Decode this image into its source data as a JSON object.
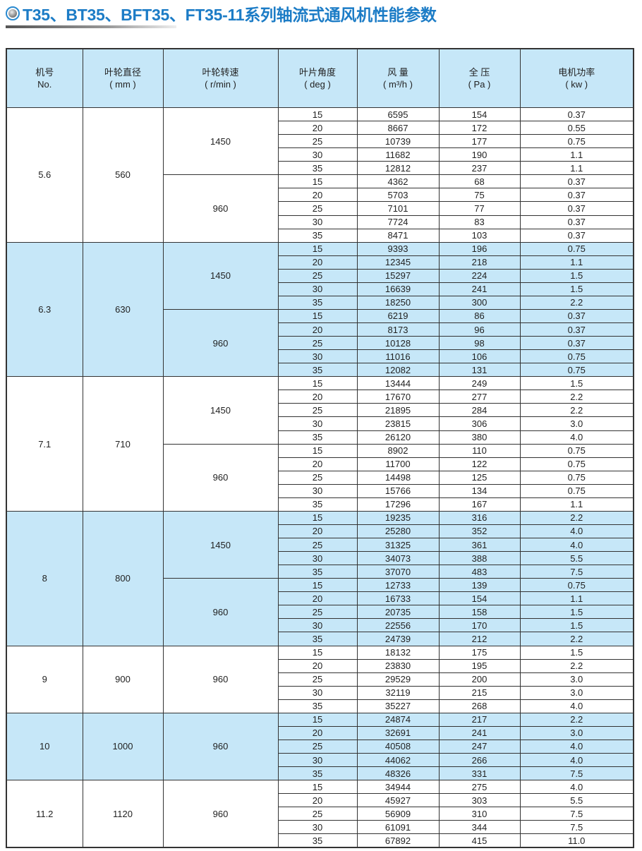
{
  "title": "T35、BT35、BFT35、FT35-11系列轴流式通风机性能参数",
  "header": [
    {
      "line1": "机号",
      "line2": "No."
    },
    {
      "line1": "叶轮直径",
      "line2": "( mm )"
    },
    {
      "line1": "叶轮转速",
      "line2": "( r/min )"
    },
    {
      "line1": "叶片角度",
      "line2": "( deg )"
    },
    {
      "line1": "风 量",
      "line2": "( m³/h )"
    },
    {
      "line1": "全 压",
      "line2": "( Pa )"
    },
    {
      "line1": "电机功率",
      "line2": "( kw )"
    }
  ],
  "colors": {
    "band": "#c6e7f8",
    "title": "#1c7cc6"
  },
  "models": [
    {
      "no": "5.6",
      "diameter": "560",
      "speeds": [
        {
          "rpm": "1450",
          "rows": [
            [
              "15",
              "6595",
              "154",
              "0.37"
            ],
            [
              "20",
              "8667",
              "172",
              "0.55"
            ],
            [
              "25",
              "10739",
              "177",
              "0.75"
            ],
            [
              "30",
              "11682",
              "190",
              "1.1"
            ],
            [
              "35",
              "12812",
              "237",
              "1.1"
            ]
          ]
        },
        {
          "rpm": "960",
          "rows": [
            [
              "15",
              "4362",
              "68",
              "0.37"
            ],
            [
              "20",
              "5703",
              "75",
              "0.37"
            ],
            [
              "25",
              "7101",
              "77",
              "0.37"
            ],
            [
              "30",
              "7724",
              "83",
              "0.37"
            ],
            [
              "35",
              "8471",
              "103",
              "0.37"
            ]
          ]
        }
      ]
    },
    {
      "no": "6.3",
      "diameter": "630",
      "speeds": [
        {
          "rpm": "1450",
          "rows": [
            [
              "15",
              "9393",
              "196",
              "0.75"
            ],
            [
              "20",
              "12345",
              "218",
              "1.1"
            ],
            [
              "25",
              "15297",
              "224",
              "1.5"
            ],
            [
              "30",
              "16639",
              "241",
              "1.5"
            ],
            [
              "35",
              "18250",
              "300",
              "2.2"
            ]
          ]
        },
        {
          "rpm": "960",
          "rows": [
            [
              "15",
              "6219",
              "86",
              "0.37"
            ],
            [
              "20",
              "8173",
              "96",
              "0.37"
            ],
            [
              "25",
              "10128",
              "98",
              "0.37"
            ],
            [
              "30",
              "11016",
              "106",
              "0.75"
            ],
            [
              "35",
              "12082",
              "131",
              "0.75"
            ]
          ]
        }
      ]
    },
    {
      "no": "7.1",
      "diameter": "710",
      "speeds": [
        {
          "rpm": "1450",
          "rows": [
            [
              "15",
              "13444",
              "249",
              "1.5"
            ],
            [
              "20",
              "17670",
              "277",
              "2.2"
            ],
            [
              "25",
              "21895",
              "284",
              "2.2"
            ],
            [
              "30",
              "23815",
              "306",
              "3.0"
            ],
            [
              "35",
              "26120",
              "380",
              "4.0"
            ]
          ]
        },
        {
          "rpm": "960",
          "rows": [
            [
              "15",
              "8902",
              "110",
              "0.75"
            ],
            [
              "20",
              "11700",
              "122",
              "0.75"
            ],
            [
              "25",
              "14498",
              "125",
              "0.75"
            ],
            [
              "30",
              "15766",
              "134",
              "0.75"
            ],
            [
              "35",
              "17296",
              "167",
              "1.1"
            ]
          ]
        }
      ]
    },
    {
      "no": "8",
      "diameter": "800",
      "speeds": [
        {
          "rpm": "1450",
          "rows": [
            [
              "15",
              "19235",
              "316",
              "2.2"
            ],
            [
              "20",
              "25280",
              "352",
              "4.0"
            ],
            [
              "25",
              "31325",
              "361",
              "4.0"
            ],
            [
              "30",
              "34073",
              "388",
              "5.5"
            ],
            [
              "35",
              "37070",
              "483",
              "7.5"
            ]
          ]
        },
        {
          "rpm": "960",
          "rows": [
            [
              "15",
              "12733",
              "139",
              "0.75"
            ],
            [
              "20",
              "16733",
              "154",
              "1.1"
            ],
            [
              "25",
              "20735",
              "158",
              "1.5"
            ],
            [
              "30",
              "22556",
              "170",
              "1.5"
            ],
            [
              "35",
              "24739",
              "212",
              "2.2"
            ]
          ]
        }
      ]
    },
    {
      "no": "9",
      "diameter": "900",
      "speeds": [
        {
          "rpm": "960",
          "rows": [
            [
              "15",
              "18132",
              "175",
              "1.5"
            ],
            [
              "20",
              "23830",
              "195",
              "2.2"
            ],
            [
              "25",
              "29529",
              "200",
              "3.0"
            ],
            [
              "30",
              "32119",
              "215",
              "3.0"
            ],
            [
              "35",
              "35227",
              "268",
              "4.0"
            ]
          ]
        }
      ]
    },
    {
      "no": "10",
      "diameter": "1000",
      "speeds": [
        {
          "rpm": "960",
          "rows": [
            [
              "15",
              "24874",
              "217",
              "2.2"
            ],
            [
              "20",
              "32691",
              "241",
              "3.0"
            ],
            [
              "25",
              "40508",
              "247",
              "4.0"
            ],
            [
              "30",
              "44062",
              "266",
              "4.0"
            ],
            [
              "35",
              "48326",
              "331",
              "7.5"
            ]
          ]
        }
      ]
    },
    {
      "no": "11.2",
      "diameter": "1120",
      "speeds": [
        {
          "rpm": "960",
          "rows": [
            [
              "15",
              "34944",
              "275",
              "4.0"
            ],
            [
              "20",
              "45927",
              "303",
              "5.5"
            ],
            [
              "25",
              "56909",
              "310",
              "7.5"
            ],
            [
              "30",
              "61091",
              "344",
              "7.5"
            ],
            [
              "35",
              "67892",
              "415",
              "11.0"
            ]
          ]
        }
      ]
    }
  ]
}
